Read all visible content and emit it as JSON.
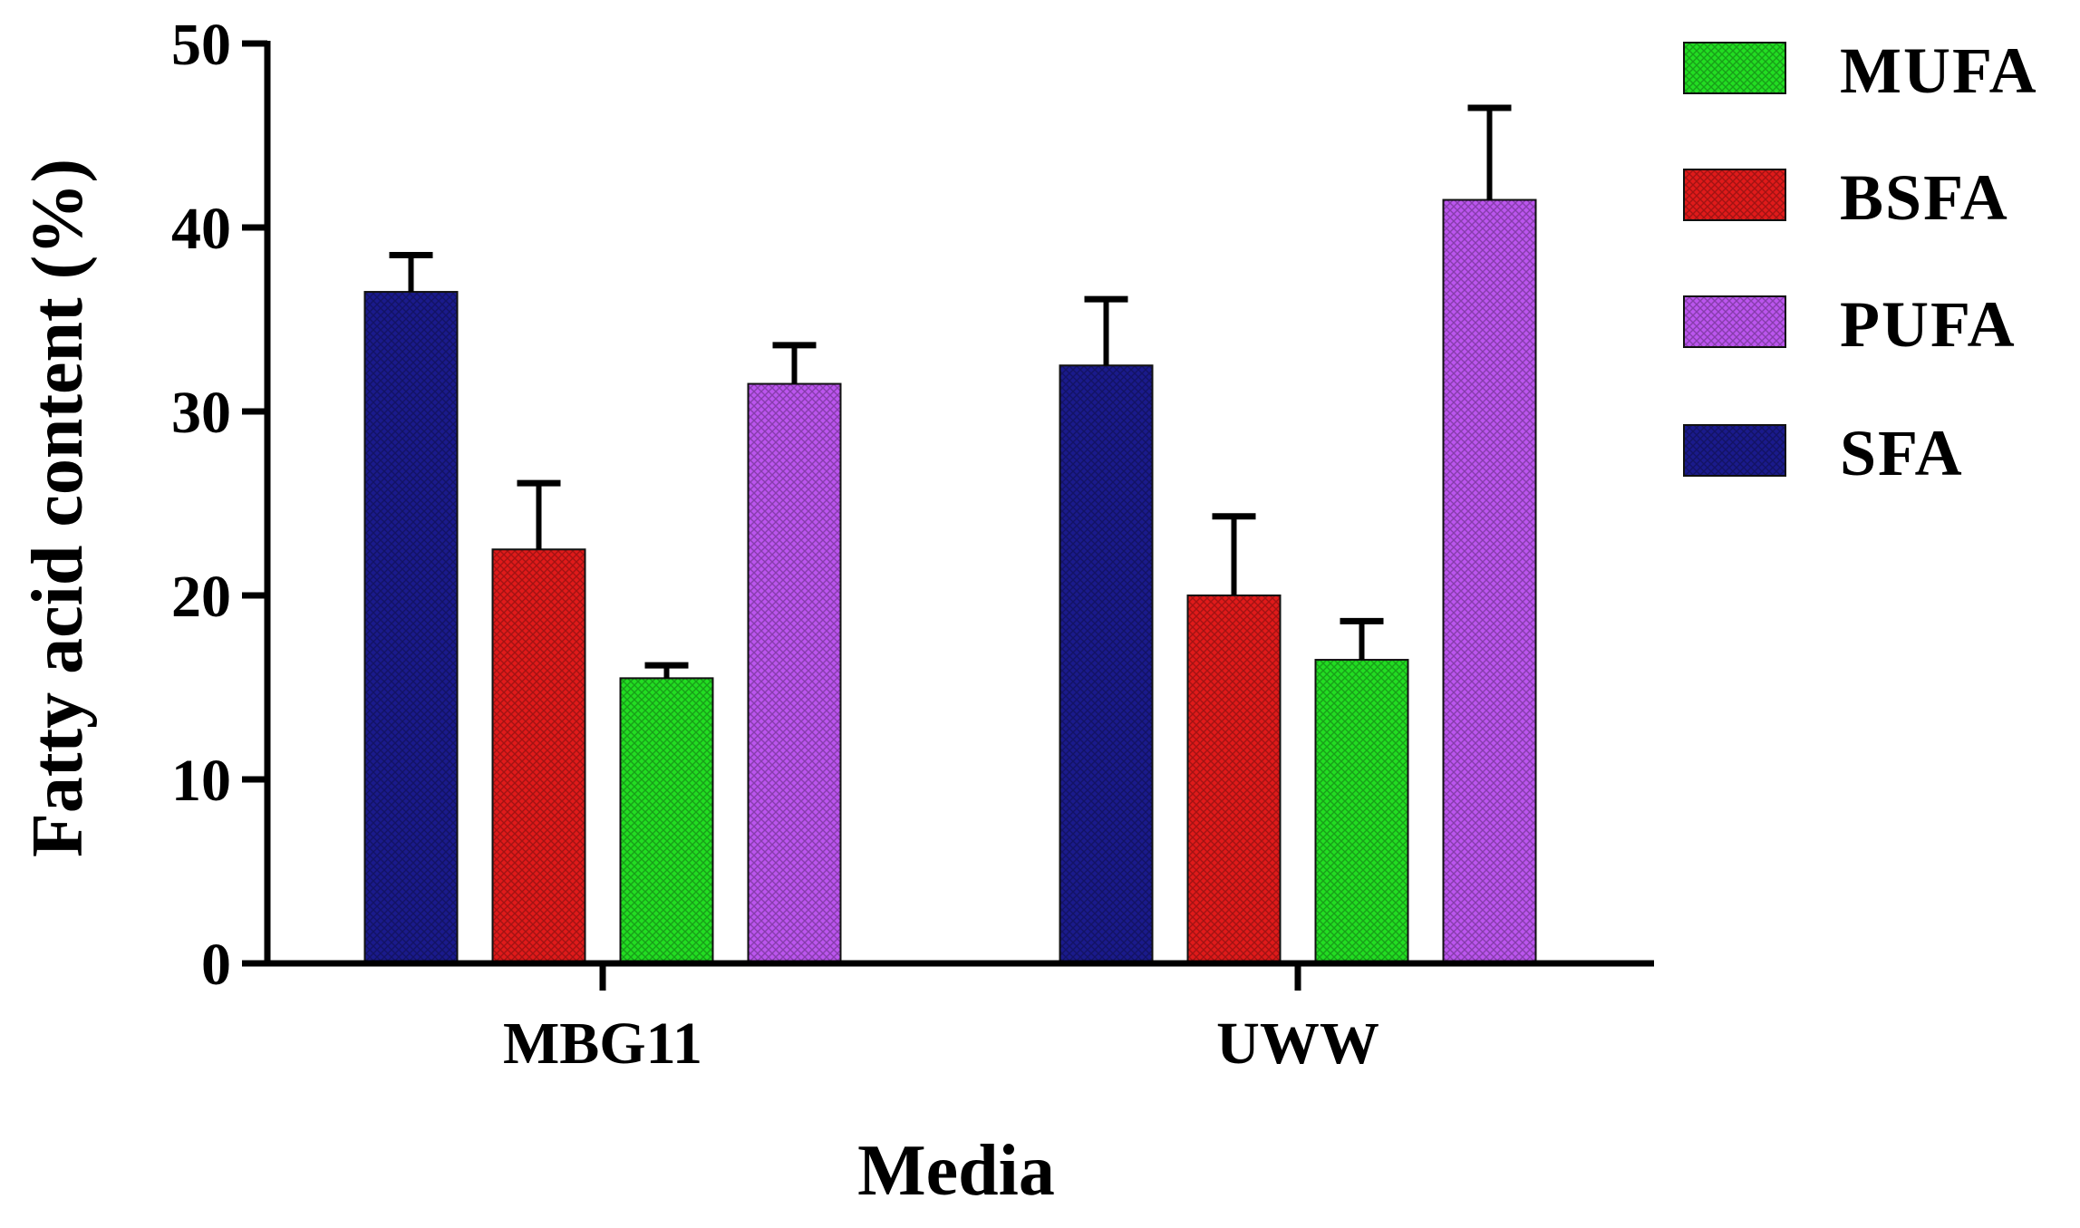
{
  "chart_data": {
    "type": "bar",
    "categories": [
      "MBG11",
      "UWW"
    ],
    "series": [
      {
        "name": "SFA",
        "values": [
          36.5,
          32.5
        ],
        "errors": [
          2.0,
          3.6
        ],
        "color": "#1a1a8c"
      },
      {
        "name": "BSFA",
        "values": [
          22.5,
          20.0
        ],
        "errors": [
          3.6,
          4.3
        ],
        "color": "#e01a1a"
      },
      {
        "name": "MUFA",
        "values": [
          15.5,
          16.5
        ],
        "errors": [
          0.7,
          2.1
        ],
        "color": "#22dd22"
      },
      {
        "name": "PUFA",
        "values": [
          31.5,
          41.5
        ],
        "errors": [
          2.1,
          5.0
        ],
        "color": "#bb55ee"
      }
    ],
    "legend_order": [
      "MUFA",
      "BSFA",
      "PUFA",
      "SFA"
    ],
    "yticks": [
      "0",
      "10",
      "20",
      "30",
      "40",
      "50"
    ],
    "ylim": [
      0,
      50
    ],
    "xlabel": "Media",
    "ylabel": "Fatty acid content (%)",
    "grid": false,
    "legend_position": "top-right"
  }
}
